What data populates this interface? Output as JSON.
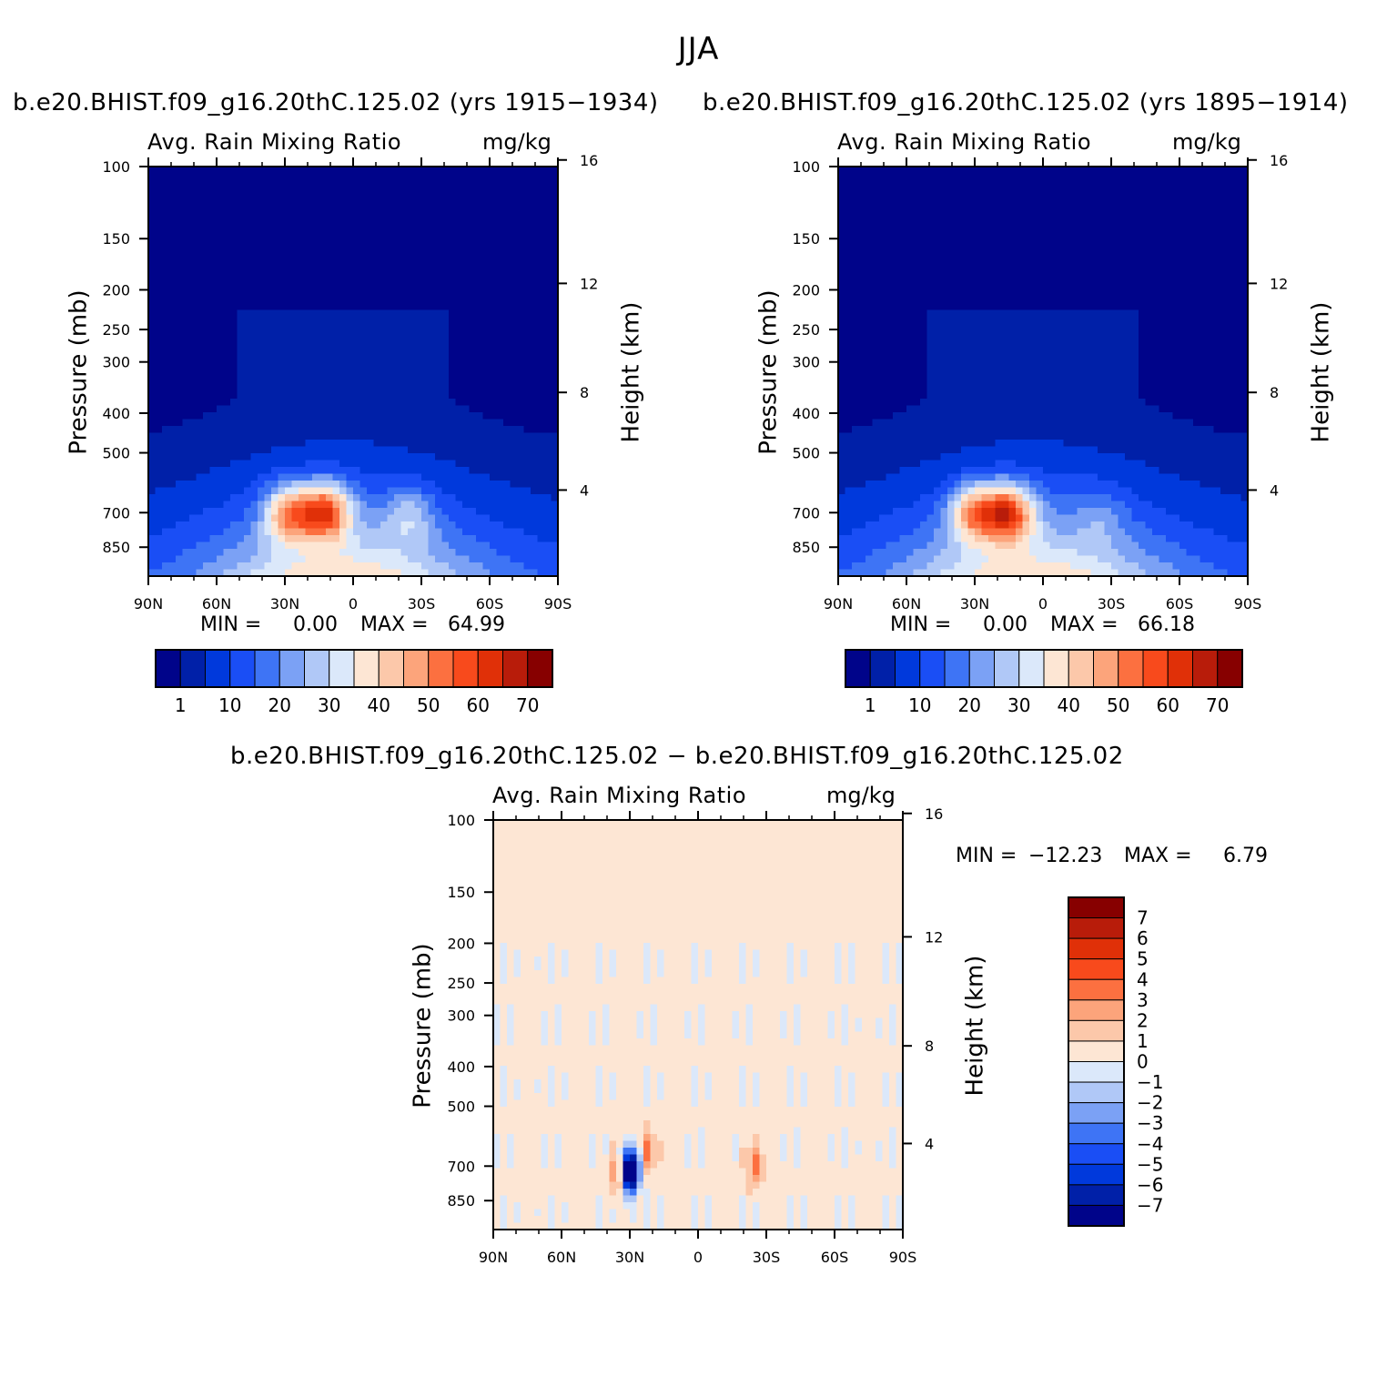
{
  "figure": {
    "title": "JJA"
  },
  "colors": {
    "seq_palette": [
      "#00048a",
      "#0020a8",
      "#0039dc",
      "#1a4ef5",
      "#3e74f5",
      "#7ba1f5",
      "#b0c8f7",
      "#dbe8fa",
      "#fde6d4",
      "#fcc8aa",
      "#fca47b",
      "#fc7040",
      "#f84a1c",
      "#e03008",
      "#b81c0a",
      "#870000"
    ],
    "diff_palette": [
      "#00048a",
      "#0020a8",
      "#0039dc",
      "#1a4ef5",
      "#3e74f5",
      "#7ba1f5",
      "#b0c8f7",
      "#dbe8fa",
      "#fde6d4",
      "#fcc8aa",
      "#fca47b",
      "#fc7040",
      "#f84a1c",
      "#e03008",
      "#b81c0a",
      "#870000"
    ]
  },
  "chart_data": [
    {
      "type": "heatmap",
      "panel": "top-left",
      "title": "b.e20.BHIST.f09_g16.20thC.125.02 (yrs 1915−1934)",
      "variable": "Avg. Rain Mixing Ratio",
      "units": "mg/kg",
      "xlabel": "",
      "ylabel": "Pressure (mb)",
      "ylabel_right": "Height (km)",
      "x_ticks": [
        "90N",
        "60N",
        "30N",
        "0",
        "30S",
        "60S",
        "90S"
      ],
      "x_values": [
        90,
        60,
        30,
        0,
        -30,
        -60,
        -90
      ],
      "y_ticks": [
        "100",
        "150",
        "200",
        "250",
        "300",
        "400",
        "500",
        "700",
        "850"
      ],
      "y_values": [
        100,
        150,
        200,
        250,
        300,
        400,
        500,
        700,
        850
      ],
      "y_range": [
        100,
        1000
      ],
      "height_ticks": [
        "16",
        "12",
        "8",
        "4"
      ],
      "height_values": [
        16,
        12,
        8,
        4
      ],
      "min_label": "MIN =",
      "min_value": "0.00",
      "max_label": "MAX =",
      "max_value": "64.99",
      "min": 0.0,
      "max": 64.99,
      "colorbar_labels": [
        "1",
        "10",
        "20",
        "30",
        "40",
        "50",
        "60",
        "70"
      ],
      "colorbar_levels": [
        1,
        5,
        10,
        15,
        20,
        25,
        30,
        35,
        40,
        45,
        50,
        55,
        60,
        65,
        70
      ],
      "features": [
        {
          "lat": 28,
          "p": 700,
          "value": 58
        },
        {
          "lat": 12,
          "p": 695,
          "value": 65
        },
        {
          "lat": -25,
          "p": 710,
          "value": 38
        }
      ]
    },
    {
      "type": "heatmap",
      "panel": "top-right",
      "title": "b.e20.BHIST.f09_g16.20thC.125.02 (yrs 1895−1914)",
      "variable": "Avg. Rain Mixing Ratio",
      "units": "mg/kg",
      "xlabel": "",
      "ylabel": "Pressure (mb)",
      "ylabel_right": "Height (km)",
      "x_ticks": [
        "90N",
        "60N",
        "30N",
        "0",
        "30S",
        "60S",
        "90S"
      ],
      "x_values": [
        90,
        60,
        30,
        0,
        -30,
        -60,
        -90
      ],
      "y_ticks": [
        "100",
        "150",
        "200",
        "250",
        "300",
        "400",
        "500",
        "700",
        "850"
      ],
      "y_values": [
        100,
        150,
        200,
        250,
        300,
        400,
        500,
        700,
        850
      ],
      "y_range": [
        100,
        1000
      ],
      "height_ticks": [
        "16",
        "12",
        "8",
        "4"
      ],
      "height_values": [
        16,
        12,
        8,
        4
      ],
      "min_label": "MIN =",
      "min_value": "0.00",
      "max_label": "MAX =",
      "max_value": "66.18",
      "min": 0.0,
      "max": 66.18,
      "colorbar_labels": [
        "1",
        "10",
        "20",
        "30",
        "40",
        "50",
        "60",
        "70"
      ],
      "colorbar_levels": [
        1,
        5,
        10,
        15,
        20,
        25,
        30,
        35,
        40,
        45,
        50,
        55,
        60,
        65,
        70
      ],
      "features": [
        {
          "lat": 30,
          "p": 700,
          "value": 58
        },
        {
          "lat": 15,
          "p": 700,
          "value": 66
        },
        {
          "lat": -25,
          "p": 715,
          "value": 32
        }
      ]
    },
    {
      "type": "heatmap",
      "panel": "bottom",
      "title": "b.e20.BHIST.f09_g16.20thC.125.02 − b.e20.BHIST.f09_g16.20thC.125.02",
      "variable": "Avg. Rain Mixing Ratio",
      "units": "mg/kg",
      "xlabel": "",
      "ylabel": "Pressure (mb)",
      "ylabel_right": "Height (km)",
      "x_ticks": [
        "90N",
        "60N",
        "30N",
        "0",
        "30S",
        "60S",
        "90S"
      ],
      "x_values": [
        90,
        60,
        30,
        0,
        -30,
        -60,
        -90
      ],
      "y_ticks": [
        "100",
        "150",
        "200",
        "250",
        "300",
        "400",
        "500",
        "700",
        "850"
      ],
      "y_values": [
        100,
        150,
        200,
        250,
        300,
        400,
        500,
        700,
        850
      ],
      "y_range": [
        100,
        1000
      ],
      "height_ticks": [
        "16",
        "12",
        "8",
        "4"
      ],
      "height_values": [
        16,
        12,
        8,
        4
      ],
      "min_label": "MIN =",
      "min_value": "−12.23",
      "max_label": "MAX =",
      "max_value": "6.79",
      "min": -12.23,
      "max": 6.79,
      "colorbar_labels": [
        "7",
        "6",
        "5",
        "4",
        "3",
        "2",
        "1",
        "0",
        "−1",
        "−2",
        "−3",
        "−4",
        "−5",
        "−6",
        "−7"
      ],
      "colorbar_levels": [
        7,
        6,
        5,
        4,
        3,
        2,
        1,
        0,
        -1,
        -2,
        -3,
        -4,
        -5,
        -6,
        -7
      ],
      "features": [
        {
          "lat": 30,
          "p": 720,
          "value": -12.23
        },
        {
          "lat": 35,
          "p": 730,
          "value": 4
        },
        {
          "lat": 22,
          "p": 640,
          "value": 3
        },
        {
          "lat": -25,
          "p": 700,
          "value": 3
        }
      ]
    }
  ]
}
